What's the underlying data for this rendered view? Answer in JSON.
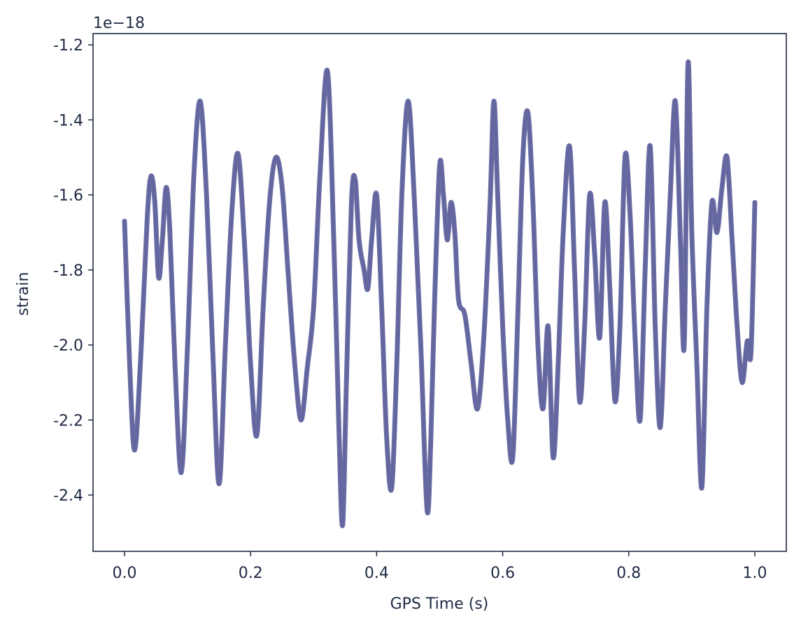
{
  "chart_data": {
    "type": "line",
    "title": "",
    "xlabel": "GPS Time (s)",
    "ylabel": "strain",
    "y_offset_label": "1e−18",
    "xlim": [
      -0.05,
      1.05
    ],
    "ylim": [
      -2.55,
      -1.17
    ],
    "x_ticks": [
      0.0,
      0.2,
      0.4,
      0.6,
      0.8,
      1.0
    ],
    "x_tick_labels": [
      "0.0",
      "0.2",
      "0.4",
      "0.6",
      "0.8",
      "1.0"
    ],
    "y_ticks": [
      -1.2,
      -1.4,
      -1.6,
      -1.8,
      -2.0,
      -2.2,
      -2.4
    ],
    "y_tick_labels": [
      "-1.2",
      "-1.4",
      "-1.6",
      "-1.8",
      "-2.0",
      "-2.2",
      "-2.4"
    ],
    "grid": false,
    "line_color": "#6466a0",
    "series": [
      {
        "x": [
          0.0,
          0.008,
          0.016,
          0.026,
          0.036,
          0.042,
          0.048,
          0.054,
          0.06,
          0.066,
          0.072,
          0.08,
          0.09,
          0.1,
          0.11,
          0.12,
          0.13,
          0.14,
          0.15,
          0.16,
          0.17,
          0.18,
          0.19,
          0.2,
          0.21,
          0.22,
          0.23,
          0.24,
          0.25,
          0.26,
          0.27,
          0.28,
          0.29,
          0.3,
          0.31,
          0.322,
          0.332,
          0.34,
          0.346,
          0.352,
          0.36,
          0.366,
          0.372,
          0.38,
          0.386,
          0.392,
          0.4,
          0.408,
          0.416,
          0.424,
          0.432,
          0.44,
          0.45,
          0.46,
          0.47,
          0.48,
          0.486,
          0.492,
          0.5,
          0.506,
          0.512,
          0.518,
          0.524,
          0.53,
          0.54,
          0.55,
          0.56,
          0.57,
          0.58,
          0.586,
          0.592,
          0.6,
          0.608,
          0.616,
          0.624,
          0.632,
          0.64,
          0.648,
          0.656,
          0.664,
          0.672,
          0.68,
          0.688,
          0.696,
          0.706,
          0.714,
          0.722,
          0.73,
          0.738,
          0.746,
          0.754,
          0.762,
          0.77,
          0.778,
          0.786,
          0.794,
          0.802,
          0.81,
          0.818,
          0.826,
          0.834,
          0.842,
          0.85,
          0.858,
          0.866,
          0.874,
          0.882,
          0.888,
          0.894,
          0.9,
          0.908,
          0.916,
          0.924,
          0.932,
          0.94,
          0.948,
          0.956,
          0.964,
          0.972,
          0.98,
          0.988,
          0.994,
          1.0
        ],
        "y": [
          -1.67,
          -2.05,
          -2.28,
          -2.02,
          -1.66,
          -1.55,
          -1.62,
          -1.82,
          -1.72,
          -1.58,
          -1.7,
          -2.05,
          -2.34,
          -2.0,
          -1.55,
          -1.35,
          -1.6,
          -2.02,
          -2.37,
          -2.0,
          -1.65,
          -1.49,
          -1.72,
          -2.05,
          -2.24,
          -1.9,
          -1.62,
          -1.5,
          -1.58,
          -1.82,
          -2.05,
          -2.2,
          -2.06,
          -1.9,
          -1.55,
          -1.27,
          -1.72,
          -2.22,
          -2.48,
          -2.1,
          -1.62,
          -1.56,
          -1.72,
          -1.8,
          -1.85,
          -1.72,
          -1.6,
          -1.9,
          -2.25,
          -2.38,
          -2.05,
          -1.6,
          -1.35,
          -1.62,
          -2.0,
          -2.44,
          -2.25,
          -1.88,
          -1.52,
          -1.6,
          -1.72,
          -1.62,
          -1.7,
          -1.88,
          -1.92,
          -2.05,
          -2.17,
          -1.98,
          -1.62,
          -1.35,
          -1.6,
          -1.95,
          -2.2,
          -2.3,
          -1.92,
          -1.5,
          -1.38,
          -1.62,
          -2.0,
          -2.17,
          -1.95,
          -2.3,
          -2.05,
          -1.7,
          -1.47,
          -1.8,
          -2.15,
          -1.95,
          -1.6,
          -1.76,
          -1.98,
          -1.62,
          -1.85,
          -2.15,
          -1.95,
          -1.5,
          -1.65,
          -1.98,
          -2.2,
          -1.8,
          -1.47,
          -1.95,
          -2.22,
          -1.9,
          -1.6,
          -1.35,
          -1.72,
          -2.0,
          -1.25,
          -1.7,
          -2.05,
          -2.38,
          -1.9,
          -1.62,
          -1.7,
          -1.58,
          -1.5,
          -1.72,
          -1.95,
          -2.1,
          -1.99,
          -2.02,
          -1.62
        ]
      }
    ]
  }
}
